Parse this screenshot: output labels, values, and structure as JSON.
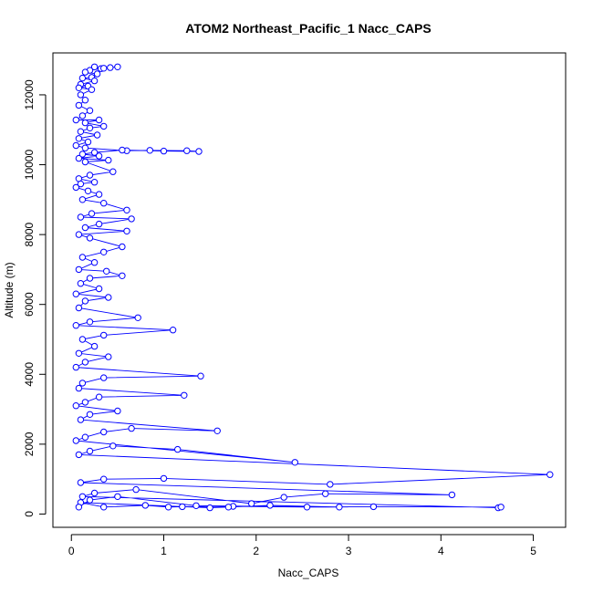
{
  "chart_data": {
    "type": "line",
    "title": "ATOM2 Northeast_Pacific_1 Nacc_CAPS",
    "xlabel": "Nacc_CAPS",
    "ylabel": "Altitude (m)",
    "xlim": [
      -0.2,
      5.35
    ],
    "ylim": [
      -380,
      13200
    ],
    "xticks": [
      0,
      1,
      2,
      3,
      4,
      5
    ],
    "yticks": [
      0,
      2000,
      4000,
      6000,
      8000,
      10000,
      12000
    ],
    "grid": false,
    "marker": "open-circle",
    "color": "#0000ff",
    "series": [
      {
        "points": [
          [
            0.25,
            12800
          ],
          [
            0.32,
            12750
          ],
          [
            0.42,
            12780
          ],
          [
            0.5,
            12800
          ],
          [
            0.35,
            12760
          ],
          [
            0.2,
            12700
          ],
          [
            0.15,
            12650
          ],
          [
            0.28,
            12600
          ],
          [
            0.22,
            12500
          ],
          [
            0.12,
            12480
          ],
          [
            0.25,
            12400
          ],
          [
            0.1,
            12300
          ],
          [
            0.18,
            12250
          ],
          [
            0.08,
            12200
          ],
          [
            0.22,
            12150
          ],
          [
            0.1,
            12000
          ],
          [
            0.15,
            11850
          ],
          [
            0.08,
            11700
          ],
          [
            0.2,
            11550
          ],
          [
            0.12,
            11400
          ],
          [
            0.05,
            11280
          ],
          [
            0.3,
            11280
          ],
          [
            0.15,
            11200
          ],
          [
            0.35,
            11100
          ],
          [
            0.2,
            11050
          ],
          [
            0.1,
            10950
          ],
          [
            0.28,
            10850
          ],
          [
            0.08,
            10750
          ],
          [
            0.18,
            10650
          ],
          [
            0.05,
            10550
          ],
          [
            0.15,
            10480
          ],
          [
            0.6,
            10400
          ],
          [
            0.85,
            10410
          ],
          [
            1.25,
            10400
          ],
          [
            1.38,
            10380
          ],
          [
            1.0,
            10390
          ],
          [
            0.55,
            10420
          ],
          [
            0.25,
            10350
          ],
          [
            0.12,
            10300
          ],
          [
            0.3,
            10250
          ],
          [
            0.08,
            10180
          ],
          [
            0.4,
            10130
          ],
          [
            0.15,
            10080
          ],
          [
            0.45,
            9800
          ],
          [
            0.2,
            9700
          ],
          [
            0.08,
            9600
          ],
          [
            0.25,
            9500
          ],
          [
            0.1,
            9450
          ],
          [
            0.05,
            9350
          ],
          [
            0.18,
            9250
          ],
          [
            0.3,
            9150
          ],
          [
            0.12,
            9000
          ],
          [
            0.35,
            8900
          ],
          [
            0.6,
            8700
          ],
          [
            0.22,
            8600
          ],
          [
            0.1,
            8500
          ],
          [
            0.65,
            8450
          ],
          [
            0.3,
            8300
          ],
          [
            0.15,
            8200
          ],
          [
            0.6,
            8100
          ],
          [
            0.08,
            8000
          ],
          [
            0.2,
            7900
          ],
          [
            0.55,
            7650
          ],
          [
            0.35,
            7500
          ],
          [
            0.12,
            7350
          ],
          [
            0.25,
            7200
          ],
          [
            0.08,
            7000
          ],
          [
            0.38,
            6950
          ],
          [
            0.55,
            6820
          ],
          [
            0.2,
            6750
          ],
          [
            0.1,
            6600
          ],
          [
            0.3,
            6450
          ],
          [
            0.05,
            6300
          ],
          [
            0.4,
            6200
          ],
          [
            0.15,
            6100
          ],
          [
            0.08,
            5900
          ],
          [
            0.72,
            5620
          ],
          [
            0.2,
            5500
          ],
          [
            0.05,
            5400
          ],
          [
            1.1,
            5270
          ],
          [
            0.35,
            5120
          ],
          [
            0.12,
            5000
          ],
          [
            0.25,
            4800
          ],
          [
            0.08,
            4600
          ],
          [
            0.4,
            4500
          ],
          [
            0.15,
            4350
          ],
          [
            0.05,
            4200
          ],
          [
            1.4,
            3950
          ],
          [
            0.35,
            3900
          ],
          [
            0.12,
            3750
          ],
          [
            0.08,
            3600
          ],
          [
            1.22,
            3400
          ],
          [
            0.3,
            3350
          ],
          [
            0.15,
            3200
          ],
          [
            0.05,
            3100
          ],
          [
            0.5,
            2950
          ],
          [
            0.2,
            2850
          ],
          [
            0.1,
            2700
          ],
          [
            1.58,
            2380
          ],
          [
            0.65,
            2450
          ],
          [
            0.35,
            2350
          ],
          [
            0.15,
            2200
          ],
          [
            0.05,
            2100
          ],
          [
            2.42,
            1480
          ],
          [
            1.15,
            1850
          ],
          [
            0.45,
            1950
          ],
          [
            0.2,
            1800
          ],
          [
            0.08,
            1700
          ],
          [
            5.18,
            1130
          ],
          [
            2.8,
            850
          ],
          [
            1.0,
            1020
          ],
          [
            0.35,
            1000
          ],
          [
            0.1,
            900
          ],
          [
            4.12,
            550
          ],
          [
            2.75,
            580
          ],
          [
            2.3,
            480
          ],
          [
            1.95,
            300
          ],
          [
            0.7,
            700
          ],
          [
            0.25,
            600
          ],
          [
            0.12,
            500
          ],
          [
            4.62,
            180
          ],
          [
            4.65,
            200
          ],
          [
            3.27,
            210
          ],
          [
            2.55,
            200
          ],
          [
            1.75,
            220
          ],
          [
            1.2,
            210
          ],
          [
            1.05,
            200
          ],
          [
            0.8,
            250
          ],
          [
            0.35,
            200
          ],
          [
            0.1,
            330
          ],
          [
            1.5,
            180
          ],
          [
            1.7,
            200
          ],
          [
            2.15,
            250
          ],
          [
            2.9,
            200
          ],
          [
            1.35,
            240
          ],
          [
            0.5,
            500
          ],
          [
            0.2,
            400
          ],
          [
            0.08,
            200
          ]
        ]
      }
    ]
  }
}
